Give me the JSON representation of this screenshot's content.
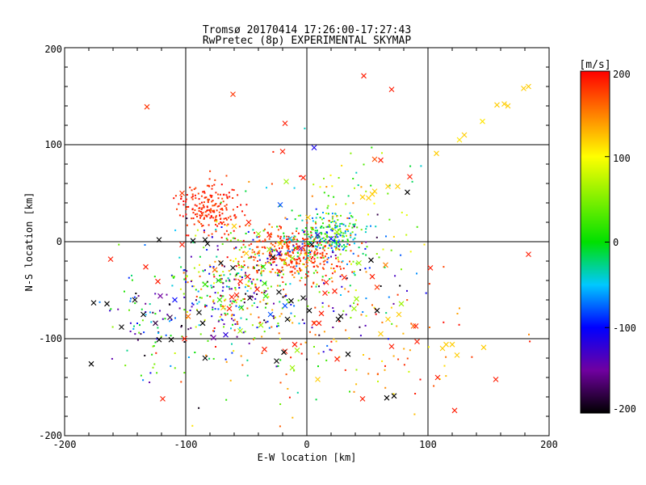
{
  "title": {
    "line1": "Tromsø 20170414 17:26:00-17:27:43",
    "line2": "RwPretec (8p) EXPERIMENTAL SKYMAP"
  },
  "axes": {
    "xlabel": "E-W location [km]",
    "ylabel": "N-S location [km]",
    "xticks": [
      "-200",
      "-100",
      "0",
      "100",
      "200"
    ],
    "yticks": [
      "-200",
      "-100",
      "0",
      "100",
      "200"
    ]
  },
  "colorbar": {
    "label": "[m/s]",
    "ticks": [
      "200",
      "100",
      "0",
      "-100",
      "-200"
    ]
  },
  "chart_data": {
    "type": "scatter",
    "title": "Tromsø 20170414 17:26:00-17:27:43",
    "subtitle": "RwPretec (8p) EXPERIMENTAL SKYMAP",
    "xlabel": "E-W location [km]",
    "ylabel": "N-S location [km]",
    "xlim": [
      -200,
      200
    ],
    "ylim": [
      -200,
      200
    ],
    "grid": true,
    "gridlines": {
      "x": [
        -100,
        0,
        100
      ],
      "y": [
        -100,
        0,
        100
      ]
    },
    "color_scale": {
      "label": "[m/s]",
      "range": [
        -200,
        200
      ],
      "stops": [
        {
          "v": -200,
          "color": "#000000"
        },
        {
          "v": -150,
          "color": "#7000a0"
        },
        {
          "v": -100,
          "color": "#0000ff"
        },
        {
          "v": -50,
          "color": "#00c8ff"
        },
        {
          "v": 0,
          "color": "#00e000"
        },
        {
          "v": 100,
          "color": "#ffff00"
        },
        {
          "v": 150,
          "color": "#ff8000"
        },
        {
          "v": 200,
          "color": "#ff0000"
        }
      ]
    },
    "series": [
      {
        "marker": "x",
        "points": [
          [
            -132,
            139,
            180
          ],
          [
            -61,
            152,
            180
          ],
          [
            47,
            171,
            190
          ],
          [
            70,
            157,
            190
          ],
          [
            -18,
            122,
            190
          ],
          [
            -20,
            93,
            190
          ],
          [
            6,
            97,
            -110
          ],
          [
            56,
            85,
            170
          ],
          [
            61,
            84,
            190
          ],
          [
            -3,
            66,
            190
          ],
          [
            -17,
            62,
            60
          ],
          [
            -22,
            38,
            -80
          ],
          [
            83,
            51,
            -200
          ],
          [
            67,
            57,
            120
          ],
          [
            75,
            57,
            120
          ],
          [
            85,
            67,
            190
          ],
          [
            107,
            91,
            120
          ],
          [
            126,
            105,
            110
          ],
          [
            130,
            110,
            120
          ],
          [
            145,
            124,
            110
          ],
          [
            157,
            141,
            120
          ],
          [
            163,
            142,
            120
          ],
          [
            166,
            140,
            120
          ],
          [
            179,
            158,
            120
          ],
          [
            183,
            160,
            120
          ],
          [
            46,
            46,
            120
          ],
          [
            51,
            45,
            120
          ],
          [
            54,
            49,
            120
          ],
          [
            56,
            52,
            120
          ],
          [
            -103,
            50,
            180
          ],
          [
            -122,
            2,
            -200
          ],
          [
            -133,
            -26,
            190
          ],
          [
            -162,
            -18,
            190
          ],
          [
            -123,
            -41,
            190
          ],
          [
            -121,
            -56,
            -150
          ],
          [
            -176,
            -63,
            -200
          ],
          [
            -153,
            -88,
            -200
          ],
          [
            -165,
            -64,
            -200
          ],
          [
            -125,
            -84,
            -180
          ],
          [
            -109,
            -60,
            -100
          ],
          [
            -113,
            -78,
            -180
          ],
          [
            -135,
            -75,
            -200
          ],
          [
            -122,
            -101,
            -200
          ],
          [
            -112,
            -101,
            -200
          ],
          [
            -89,
            -73,
            -200
          ],
          [
            -86,
            -84,
            -200
          ],
          [
            -84,
            -120,
            -200
          ],
          [
            -77,
            -99,
            -150
          ],
          [
            -67,
            -96,
            -120
          ],
          [
            -55,
            -92,
            60
          ],
          [
            -69,
            -68,
            120
          ],
          [
            -64,
            -69,
            190
          ],
          [
            -58,
            -55,
            190
          ],
          [
            -55,
            -41,
            190
          ],
          [
            -76,
            -29,
            160
          ],
          [
            -71,
            -22,
            -200
          ],
          [
            -73,
            -40,
            20
          ],
          [
            -84,
            -44,
            20
          ],
          [
            -72,
            -60,
            20
          ],
          [
            -98,
            -77,
            160
          ],
          [
            -101,
            -100,
            190
          ],
          [
            -119,
            -162,
            190
          ],
          [
            -178,
            -126,
            -200
          ],
          [
            -84,
            2,
            -200
          ],
          [
            -103,
            -3,
            190
          ],
          [
            -94,
            1,
            -200
          ],
          [
            -82,
            -2,
            -200
          ],
          [
            -50,
            -12,
            120
          ],
          [
            -61,
            -27,
            -200
          ],
          [
            -49,
            -36,
            190
          ],
          [
            -35,
            -43,
            20
          ],
          [
            -34,
            -56,
            20
          ],
          [
            -23,
            -52,
            -200
          ],
          [
            -13,
            -61,
            -200
          ],
          [
            -16,
            -80,
            -200
          ],
          [
            -38,
            -86,
            60
          ],
          [
            -35,
            -111,
            190
          ],
          [
            -18,
            -113,
            190
          ],
          [
            -10,
            -106,
            190
          ],
          [
            -19,
            -114,
            -200
          ],
          [
            -12,
            -130,
            60
          ],
          [
            -25,
            -123,
            -200
          ],
          [
            -8,
            -112,
            60
          ],
          [
            -3,
            -58,
            -200
          ],
          [
            2,
            -71,
            -200
          ],
          [
            6,
            -84,
            190
          ],
          [
            10,
            -84,
            190
          ],
          [
            12,
            -74,
            190
          ],
          [
            15,
            -53,
            190
          ],
          [
            23,
            -51,
            190
          ],
          [
            28,
            -77,
            -200
          ],
          [
            26,
            -80,
            -200
          ],
          [
            34,
            -116,
            -200
          ],
          [
            39,
            -69,
            60
          ],
          [
            41,
            -59,
            60
          ],
          [
            54,
            -36,
            190
          ],
          [
            58,
            -47,
            180
          ],
          [
            58,
            -71,
            -200
          ],
          [
            53,
            -19,
            -200
          ],
          [
            65,
            -24,
            150
          ],
          [
            76,
            -75,
            120
          ],
          [
            67,
            -80,
            120
          ],
          [
            61,
            -95,
            120
          ],
          [
            70,
            -108,
            190
          ],
          [
            88,
            -87,
            160
          ],
          [
            91,
            -103,
            190
          ],
          [
            90,
            -87,
            190
          ],
          [
            102,
            -27,
            190
          ],
          [
            115,
            -106,
            120
          ],
          [
            112,
            -110,
            120
          ],
          [
            124,
            -117,
            120
          ],
          [
            120,
            -106,
            120
          ],
          [
            108,
            -140,
            190
          ],
          [
            122,
            -174,
            190
          ],
          [
            146,
            -109,
            120
          ],
          [
            156,
            -142,
            190
          ],
          [
            183,
            -13,
            190
          ],
          [
            46,
            -162,
            190
          ],
          [
            66,
            -161,
            -200
          ],
          [
            72,
            -159,
            -200
          ],
          [
            78,
            -64,
            60
          ],
          [
            25,
            -121,
            190
          ],
          [
            9,
            -142,
            120
          ],
          [
            -23,
            -12,
            -110
          ],
          [
            -12,
            -17,
            60
          ],
          [
            -5,
            -7,
            -150
          ],
          [
            4,
            -3,
            -200
          ],
          [
            9,
            7,
            -130
          ],
          [
            20,
            3,
            -100
          ],
          [
            25,
            10,
            60
          ],
          [
            1,
            25,
            120
          ],
          [
            -40,
            8,
            60
          ],
          [
            -60,
            16,
            120
          ],
          [
            -48,
            20,
            190
          ],
          [
            -31,
            7,
            190
          ],
          [
            -31,
            -8,
            60
          ],
          [
            -28,
            -16,
            -200
          ],
          [
            -22,
            -2,
            120
          ],
          [
            -14,
            3,
            -50
          ],
          [
            -36,
            -26,
            20
          ],
          [
            16,
            -42,
            190
          ],
          [
            31,
            -37,
            190
          ],
          [
            43,
            -22,
            60
          ],
          [
            -142,
            -60,
            -200
          ],
          [
            -30,
            -75,
            -80
          ],
          [
            -18,
            -66,
            -80
          ],
          [
            -54,
            -68,
            20
          ],
          [
            -62,
            -57,
            190
          ],
          [
            -47,
            -58,
            -200
          ],
          [
            -41,
            -49,
            190
          ]
        ]
      },
      {
        "marker": "dot",
        "clusters": [
          {
            "cx": -80,
            "cy": 35,
            "sx": 12,
            "sy": 13,
            "n": 200,
            "vmin": 170,
            "vmax": 200,
            "seed": 11
          },
          {
            "cx": -10,
            "cy": -12,
            "sx": 20,
            "sy": 13,
            "n": 320,
            "vmin": 160,
            "vmax": 200,
            "seed": 12
          },
          {
            "cx": 18,
            "cy": 5,
            "sx": 15,
            "sy": 13,
            "n": 240,
            "vmin": -100,
            "vmax": 80,
            "seed": 13
          },
          {
            "cx": -62,
            "cy": -45,
            "sx": 28,
            "sy": 28,
            "n": 360,
            "vmin": -200,
            "vmax": 200,
            "seed": 14
          },
          {
            "cx": -130,
            "cy": -80,
            "sx": 22,
            "sy": 32,
            "n": 90,
            "vmin": -200,
            "vmax": 60,
            "seed": 15
          },
          {
            "cx": 30,
            "cy": -40,
            "sx": 32,
            "sy": 32,
            "n": 110,
            "vmin": -200,
            "vmax": 200,
            "seed": 16
          },
          {
            "cx": 30,
            "cy": 40,
            "sx": 40,
            "sy": 32,
            "n": 70,
            "vmin": -50,
            "vmax": 200,
            "seed": 17
          },
          {
            "cx": 60,
            "cy": -120,
            "sx": 60,
            "sy": 40,
            "n": 60,
            "vmin": 100,
            "vmax": 200,
            "seed": 18
          },
          {
            "cx": -20,
            "cy": -110,
            "sx": 50,
            "sy": 30,
            "n": 70,
            "vmin": -200,
            "vmax": 200,
            "seed": 19
          }
        ]
      }
    ]
  }
}
